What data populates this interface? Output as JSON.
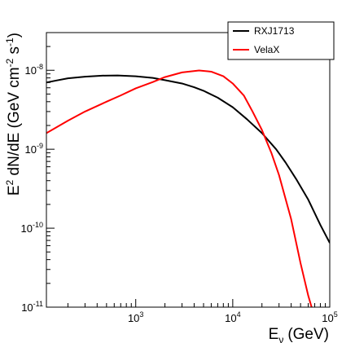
{
  "chart_data": {
    "type": "line",
    "title": "",
    "xlabel": "E",
    "xlabel_sub": "ν",
    "xlabel_unit": "(GeV)",
    "ylabel_parts": [
      "E",
      "2",
      " dN/dE (GeV cm",
      "-2",
      " s",
      "-1",
      ")"
    ],
    "xscale": "log",
    "yscale": "log",
    "xlim": [
      120,
      100000
    ],
    "ylim": [
      1e-11,
      3e-08
    ],
    "grid": false,
    "legend_position": "top-right",
    "x_ticks": [
      {
        "value": 1000,
        "base": "10",
        "exp": "3"
      },
      {
        "value": 10000,
        "base": "10",
        "exp": "4"
      },
      {
        "value": 100000,
        "base": "10",
        "exp": "5"
      }
    ],
    "y_ticks": [
      {
        "value": 1e-11,
        "base": "10",
        "exp": "-11"
      },
      {
        "value": 1e-10,
        "base": "10",
        "exp": "-10"
      },
      {
        "value": 1e-09,
        "base": "10",
        "exp": "-9"
      },
      {
        "value": 1e-08,
        "base": "10",
        "exp": "-8"
      }
    ],
    "series": [
      {
        "name": "RXJ1713",
        "color": "#000000",
        "x": [
          120,
          150,
          200,
          300,
          450,
          650,
          1000,
          1500,
          2000,
          3000,
          4000,
          5000,
          7000,
          10000,
          14000,
          20000,
          28000,
          35000,
          45000,
          60000,
          80000,
          100000
        ],
        "y": [
          7e-09,
          7.4e-09,
          7.9e-09,
          8.3e-09,
          8.55e-09,
          8.6e-09,
          8.4e-09,
          8e-09,
          7.5e-09,
          6.8e-09,
          6.1e-09,
          5.5e-09,
          4.5e-09,
          3.4e-09,
          2.4e-09,
          1.6e-09,
          1e-09,
          6.8e-10,
          4.2e-10,
          2.3e-10,
          1.1e-10,
          6.5e-11
        ]
      },
      {
        "name": "VelaX",
        "color": "#ff0000",
        "x": [
          120,
          200,
          300,
          500,
          700,
          1000,
          1500,
          2000,
          3000,
          4500,
          6000,
          8000,
          10000,
          13000,
          16000,
          20000,
          25000,
          30000,
          40000,
          50000,
          60000,
          65000,
          70000
        ],
        "y": [
          1.6e-09,
          2.3e-09,
          3e-09,
          4e-09,
          4.8e-09,
          5.9e-09,
          7.1e-09,
          8.2e-09,
          9.4e-09,
          9.95e-09,
          9.6e-09,
          8.4e-09,
          6.8e-09,
          4.8e-09,
          3e-09,
          1.75e-09,
          9e-10,
          4.7e-10,
          1.3e-10,
          3.6e-11,
          1.4e-11,
          1e-11,
          8e-12
        ]
      }
    ]
  }
}
